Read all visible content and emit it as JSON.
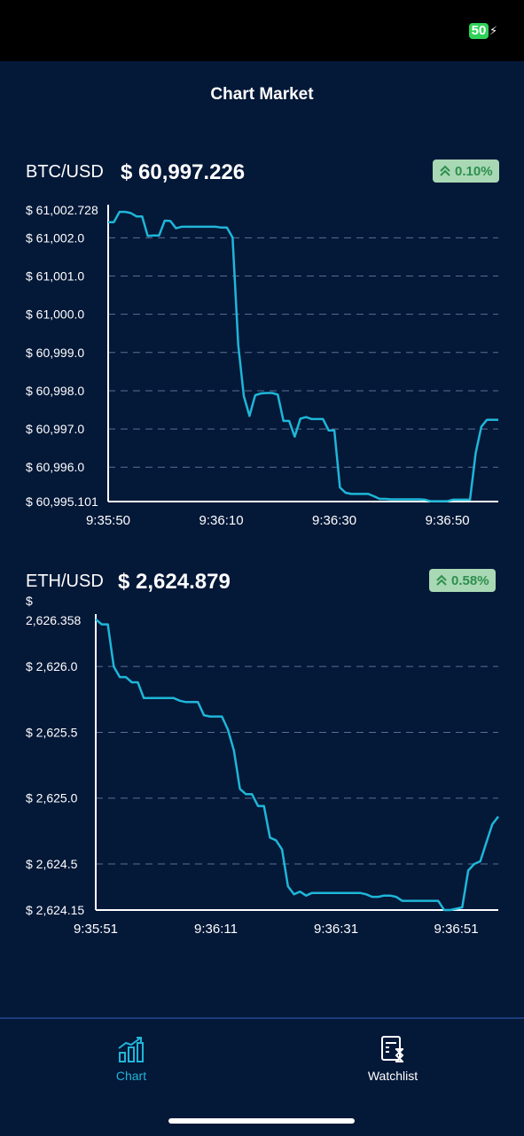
{
  "status_bar": {
    "battery": "50"
  },
  "header": {
    "title": "Chart Market"
  },
  "colors": {
    "background": "#041838",
    "line": "#1fb6d8",
    "badge_bg": "#a9d8b4",
    "badge_text": "#2d8f4e",
    "nav_active": "#1fb6d8"
  },
  "btc": {
    "pair": "BTC/USD",
    "price": "$ 60,997.226",
    "change": "0.10%",
    "change_icon": "double-chevron-up-icon"
  },
  "eth": {
    "pair": "ETH/USD",
    "price": "$ 2,624.879",
    "change": "0.58%",
    "change_icon": "double-chevron-up-icon"
  },
  "nav": {
    "items": [
      {
        "label": "Chart",
        "icon": "bar-chart-icon",
        "active": true
      },
      {
        "label": "Watchlist",
        "icon": "watchlist-icon",
        "active": false
      }
    ]
  },
  "chart_data": [
    {
      "type": "line",
      "series": [
        {
          "values": [
            61002.41,
            61002.41,
            61002.68,
            61002.68,
            61002.65,
            61002.56,
            61002.56,
            61002.05,
            61002.06,
            61002.06,
            61002.45,
            61002.44,
            61002.25,
            61002.29,
            61002.29,
            61002.29,
            61002.29,
            61002.29,
            61002.29,
            61002.29,
            61002.27,
            61002.27,
            61002.01,
            60999.2,
            60997.86,
            60997.34,
            60997.88,
            60997.93,
            60997.94,
            60997.94,
            60997.9,
            60997.21,
            60997.21,
            60996.8,
            60997.27,
            60997.31,
            60997.26,
            60997.26,
            60997.26,
            60996.96,
            60996.96,
            60995.47,
            60995.33,
            60995.3,
            60995.3,
            60995.3,
            60995.3,
            60995.24,
            60995.17,
            60995.17,
            60995.16,
            60995.16,
            60995.16,
            60995.16,
            60995.16,
            60995.16,
            60995.15,
            60995.11,
            60995.11,
            60995.11,
            60995.11,
            60995.15,
            60995.15,
            60995.15,
            60995.15,
            60996.37,
            60997.06,
            60997.24,
            60997.24,
            60997.24
          ]
        }
      ],
      "x": [
        "9:35:50",
        "9:35:51",
        "9:35:52",
        "9:35:53",
        "9:35:54",
        "9:35:55",
        "9:35:56",
        "9:35:57",
        "9:35:58",
        "9:35:59",
        "9:36:00",
        "9:36:01",
        "9:36:02",
        "9:36:03",
        "9:36:04",
        "9:36:05",
        "9:36:06",
        "9:36:07",
        "9:36:08",
        "9:36:09",
        "9:36:10",
        "9:36:11",
        "9:36:12",
        "9:36:13",
        "9:36:14",
        "9:36:15",
        "9:36:16",
        "9:36:17",
        "9:36:18",
        "9:36:19",
        "9:36:20",
        "9:36:21",
        "9:36:22",
        "9:36:23",
        "9:36:24",
        "9:36:25",
        "9:36:26",
        "9:36:27",
        "9:36:28",
        "9:36:29",
        "9:36:30",
        "9:36:31",
        "9:36:32",
        "9:36:33",
        "9:36:34",
        "9:36:35",
        "9:36:36",
        "9:36:37",
        "9:36:38",
        "9:36:39",
        "9:36:40",
        "9:36:41",
        "9:36:42",
        "9:36:43",
        "9:36:44",
        "9:36:45",
        "9:36:46",
        "9:36:47",
        "9:36:48",
        "9:36:49",
        "9:36:50",
        "9:36:51",
        "9:36:52",
        "9:36:53",
        "9:36:54",
        "9:36:55",
        "9:36:56",
        "9:36:57",
        "9:36:58",
        "9:36:59"
      ],
      "xticks": [
        "9:35:50",
        "9:36:10",
        "9:36:30",
        "9:36:50"
      ],
      "yticks": [
        "$ 61,002.728",
        "$ 61,002.0",
        "$ 61,001.0",
        "$ 61,000.0",
        "$ 60,999.0",
        "$ 60,998.0",
        "$ 60,997.0",
        "$ 60,996.0",
        "$ 60,995.101"
      ],
      "ytick_values": [
        61002.728,
        61002.0,
        61001.0,
        61000.0,
        60999.0,
        60998.0,
        60997.0,
        60996.0,
        60995.101
      ],
      "ylim": [
        60995.101,
        61002.728
      ],
      "grid": "horizontal dashed"
    },
    {
      "type": "line",
      "series": [
        {
          "values": [
            2626.358,
            2626.32,
            2626.32,
            2626.0,
            2625.92,
            2625.92,
            2625.88,
            2625.88,
            2625.76,
            2625.76,
            2625.76,
            2625.76,
            2625.76,
            2625.76,
            2625.74,
            2625.73,
            2625.73,
            2625.73,
            2625.63,
            2625.62,
            2625.62,
            2625.62,
            2625.52,
            2625.36,
            2625.07,
            2625.03,
            2625.03,
            2624.94,
            2624.94,
            2624.7,
            2624.68,
            2624.61,
            2624.33,
            2624.27,
            2624.29,
            2624.26,
            2624.28,
            2624.28,
            2624.28,
            2624.28,
            2624.28,
            2624.28,
            2624.28,
            2624.28,
            2624.28,
            2624.27,
            2624.25,
            2624.25,
            2624.26,
            2624.26,
            2624.25,
            2624.22,
            2624.22,
            2624.22,
            2624.22,
            2624.22,
            2624.22,
            2624.22,
            2624.15,
            2624.15,
            2624.16,
            2624.17,
            2624.45,
            2624.5,
            2624.52,
            2624.66,
            2624.8,
            2624.86
          ]
        }
      ],
      "x": [
        "9:35:51",
        "9:35:52",
        "9:35:53",
        "9:35:54",
        "9:35:55",
        "9:35:56",
        "9:35:57",
        "9:35:58",
        "9:35:59",
        "9:36:00",
        "9:36:01",
        "9:36:02",
        "9:36:03",
        "9:36:04",
        "9:36:05",
        "9:36:06",
        "9:36:07",
        "9:36:08",
        "9:36:09",
        "9:36:10",
        "9:36:11",
        "9:36:12",
        "9:36:13",
        "9:36:14",
        "9:36:15",
        "9:36:16",
        "9:36:17",
        "9:36:18",
        "9:36:19",
        "9:36:20",
        "9:36:21",
        "9:36:22",
        "9:36:23",
        "9:36:24",
        "9:36:25",
        "9:36:26",
        "9:36:27",
        "9:36:28",
        "9:36:29",
        "9:36:30",
        "9:36:31",
        "9:36:32",
        "9:36:33",
        "9:36:34",
        "9:36:35",
        "9:36:36",
        "9:36:37",
        "9:36:38",
        "9:36:39",
        "9:36:40",
        "9:36:41",
        "9:36:42",
        "9:36:43",
        "9:36:44",
        "9:36:45",
        "9:36:46",
        "9:36:47",
        "9:36:48",
        "9:36:49",
        "9:36:50",
        "9:36:51",
        "9:36:52",
        "9:36:53",
        "9:36:54",
        "9:36:55",
        "9:36:56",
        "9:36:57",
        "9:36:58"
      ],
      "xticks": [
        "9:35:51",
        "9:36:11",
        "9:36:31",
        "9:36:51"
      ],
      "yticks": [
        "$",
        "2,626.358",
        "$ 2,626.0",
        "$ 2,625.5",
        "$ 2,625.0",
        "$ 2,624.5",
        "$ 2,624.15"
      ],
      "ytick_values": [
        2626.358,
        2626.358,
        2626.0,
        2625.5,
        2625.0,
        2624.5,
        2624.15
      ],
      "ylim": [
        2624.15,
        2626.358
      ],
      "grid": "horizontal dashed"
    }
  ]
}
